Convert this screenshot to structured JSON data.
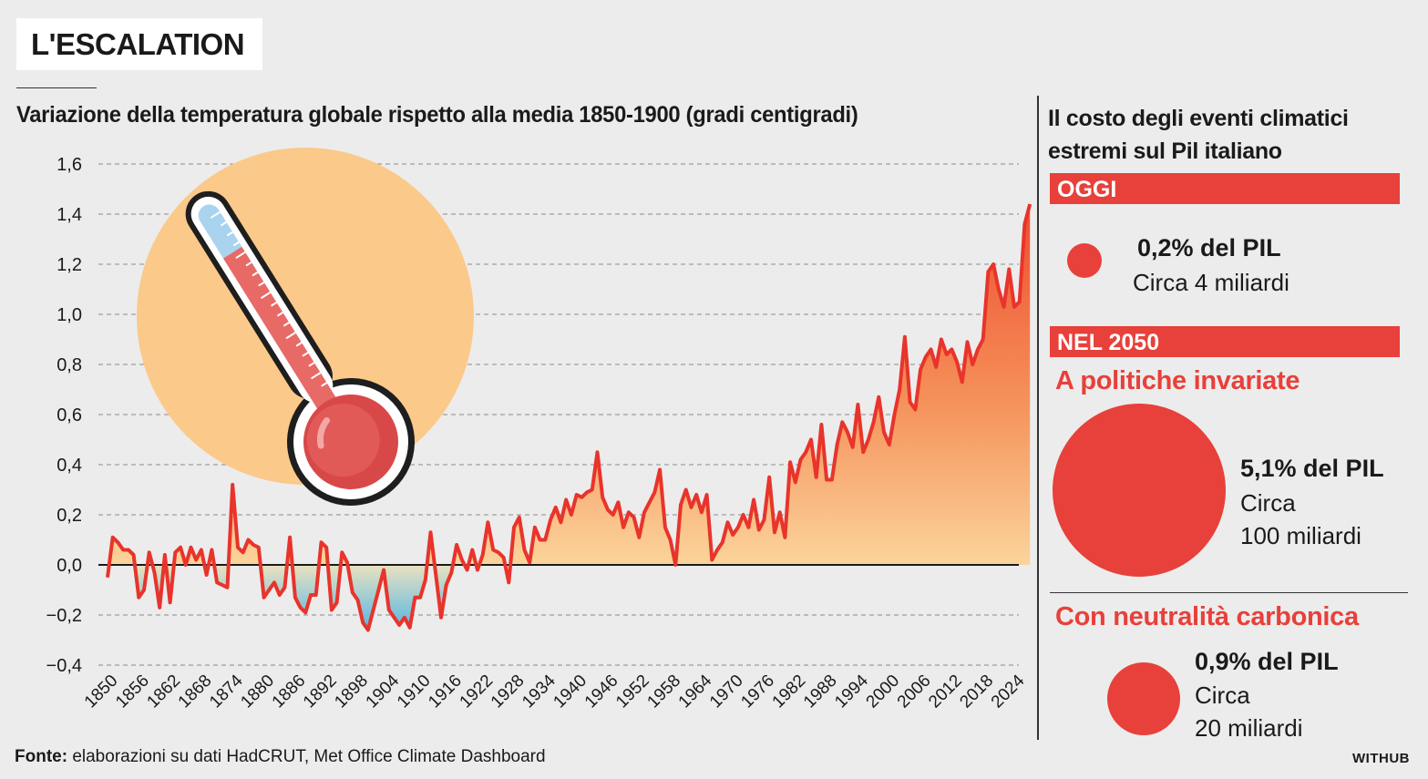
{
  "header": {
    "title": "L'ESCALATION"
  },
  "chart_data": {
    "type": "area",
    "title": "Variazione della temperatura globale rispetto alla media 1850-1900 (gradi  centigradi)",
    "ylim": [
      -0.4,
      1.6
    ],
    "yticks": [
      "1,6",
      "1,4",
      "1,2",
      "1,0",
      "0,8",
      "0,6",
      "0,4",
      "0,2",
      "0,0",
      "−0,2",
      "−0,4"
    ],
    "xticks": [
      "1850",
      "1856",
      "1862",
      "1868",
      "1874",
      "1880",
      "1886",
      "1892",
      "1898",
      "1904",
      "1910",
      "1916",
      "1922",
      "1928",
      "1934",
      "1940",
      "1946",
      "1952",
      "1958",
      "1964",
      "1970",
      "1976",
      "1982",
      "1988",
      "1994",
      "2000",
      "2006",
      "2012",
      "2018",
      "2024"
    ],
    "grid": true,
    "x_start": 1850,
    "x_end": 2024,
    "values": [
      -0.05,
      0.11,
      0.09,
      0.06,
      0.06,
      0.04,
      -0.13,
      -0.1,
      0.05,
      -0.03,
      -0.17,
      0.04,
      -0.15,
      0.05,
      0.07,
      0.0,
      0.07,
      0.02,
      0.06,
      -0.04,
      0.06,
      -0.07,
      -0.08,
      -0.09,
      0.32,
      0.07,
      0.05,
      0.1,
      0.08,
      0.07,
      -0.13,
      -0.1,
      -0.07,
      -0.12,
      -0.09,
      0.11,
      -0.13,
      -0.17,
      -0.19,
      -0.12,
      -0.12,
      0.09,
      0.07,
      -0.18,
      -0.15,
      0.05,
      0.01,
      -0.11,
      -0.14,
      -0.23,
      -0.26,
      -0.18,
      -0.1,
      -0.02,
      -0.18,
      -0.21,
      -0.24,
      -0.21,
      -0.25,
      -0.13,
      -0.13,
      -0.06,
      0.13,
      -0.04,
      -0.21,
      -0.08,
      -0.03,
      0.08,
      0.02,
      -0.02,
      0.06,
      -0.02,
      0.04,
      0.17,
      0.06,
      0.05,
      0.03,
      -0.07,
      0.15,
      0.19,
      0.06,
      0.01,
      0.15,
      0.1,
      0.1,
      0.18,
      0.23,
      0.17,
      0.26,
      0.2,
      0.28,
      0.27,
      0.29,
      0.3,
      0.45,
      0.27,
      0.22,
      0.2,
      0.25,
      0.15,
      0.21,
      0.19,
      0.11,
      0.21,
      0.25,
      0.29,
      0.38,
      0.15,
      0.1,
      0.0,
      0.24,
      0.3,
      0.23,
      0.28,
      0.21,
      0.28,
      0.02,
      0.06,
      0.09,
      0.17,
      0.12,
      0.15,
      0.2,
      0.15,
      0.26,
      0.14,
      0.18,
      0.35,
      0.13,
      0.21,
      0.11,
      0.41,
      0.33,
      0.42,
      0.45,
      0.5,
      0.35,
      0.56,
      0.34,
      0.34,
      0.48,
      0.57,
      0.53,
      0.47,
      0.64,
      0.45,
      0.5,
      0.57,
      0.67,
      0.53,
      0.48,
      0.6,
      0.7,
      0.91,
      0.65,
      0.62,
      0.78,
      0.83,
      0.86,
      0.79,
      0.9,
      0.84,
      0.86,
      0.81,
      0.73,
      0.89,
      0.8,
      0.86,
      0.9,
      1.17,
      1.2,
      1.1,
      1.03,
      1.18,
      1.03,
      1.05,
      1.36,
      1.44
    ]
  },
  "sidebar": {
    "title_line1": "Il costo degli eventi climatici",
    "title_line2": "estremi sul Pil italiano",
    "today_label": "OGGI",
    "today_pct": "0,2% del PIL",
    "today_amount": "Circa 4 miliardi",
    "future_label": "NEL 2050",
    "scenario1_label": "A politiche invariate",
    "scenario1_pct": "5,1% del PIL",
    "scenario1_amount_l1": "Circa",
    "scenario1_amount_l2": "100 miliardi",
    "scenario2_label": "Con neutralità carbonica",
    "scenario2_pct": "0,9% del PIL",
    "scenario2_amount_l1": "Circa",
    "scenario2_amount_l2": "20 miliardi"
  },
  "footer": {
    "source_label": "Fonte:",
    "source_text": " elaborazioni su dati HadCRUT, Met Office Climate Dashboard",
    "brand": "WITHUB"
  },
  "colors": {
    "accent": "#e8403a",
    "line": "#e8342b",
    "sun": "#fbc98a",
    "cold": "#5ab9e6"
  }
}
